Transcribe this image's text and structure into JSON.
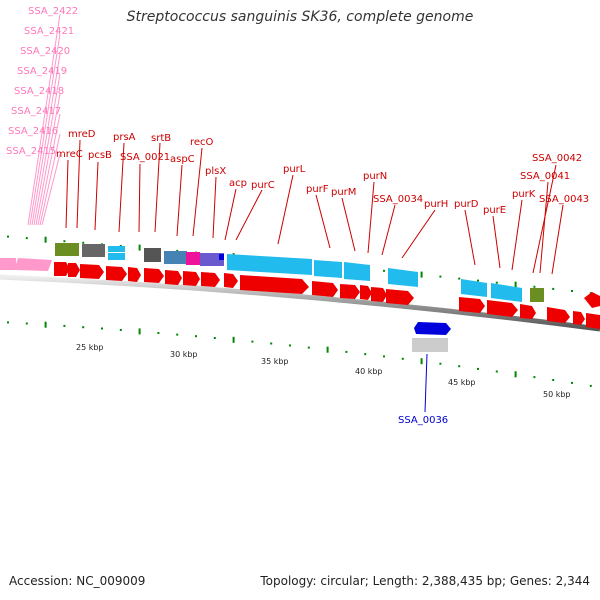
{
  "title": "Streptococcus sanguinis SK36, complete genome",
  "footer": {
    "accession": "Accession: NC_009009",
    "summary": "Topology: circular; Length: 2,388,435 bp; Genes: 2,344"
  },
  "colors": {
    "red_gene": "#ee0000",
    "blue_gene": "#22bbee",
    "dark_blue_gene": "#0000dd",
    "gray_gene": "#666666",
    "light_gray_gene": "#cccccc",
    "olive_gene": "#6b8e23",
    "steelblue_gene": "#4682b4",
    "magenta_gene": "#ee1199",
    "purple_gene": "#6a5acd",
    "pink_gene": "#ff99cc",
    "tick": "#008800",
    "label_red": "#cc0000",
    "label_blue": "#0000cc",
    "label_pink": "#ff77bb"
  },
  "scale_labels": [
    "25 kbp",
    "30 kbp",
    "35 kbp",
    "40 kbp",
    "45 kbp",
    "50 kbp"
  ],
  "pink_labels": [
    "SSA_2422",
    "SSA_2421",
    "SSA_2420",
    "SSA_2419",
    "SSA_2418",
    "SSA_2417",
    "SSA_2416",
    "SSA_2415"
  ],
  "top_labels": [
    "mreD",
    "mreC",
    "pcsB",
    "prsA",
    "srtB",
    "SSA_0021",
    "recO",
    "aspC",
    "plsX",
    "acp",
    "purC",
    "purL",
    "purF",
    "purM",
    "purN",
    "SSA_0034",
    "purH",
    "purD",
    "purE",
    "purK",
    "SSA_0042",
    "SSA_0041",
    "SSA_0043"
  ],
  "bottom_labels": [
    "SSA_0036"
  ]
}
